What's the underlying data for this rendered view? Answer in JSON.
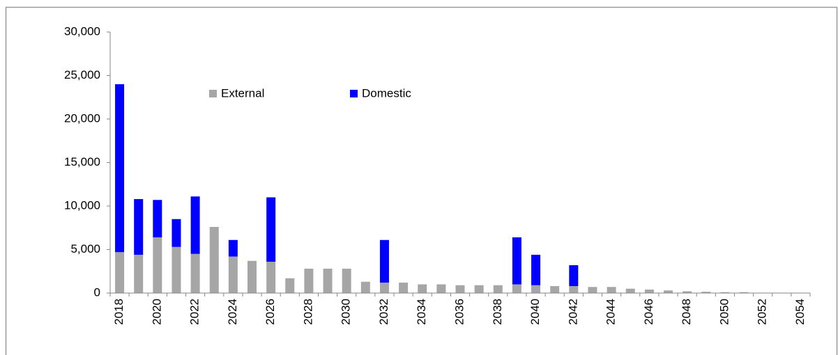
{
  "chart_data": {
    "type": "bar",
    "stacked": true,
    "categories": [
      "2018",
      null,
      "2020",
      null,
      "2022",
      null,
      "2024",
      null,
      "2026",
      null,
      "2028",
      null,
      "2030",
      null,
      "2032",
      null,
      "2034",
      null,
      "2036",
      null,
      "2038",
      null,
      "2040",
      null,
      "2042",
      null,
      "2044",
      null,
      "2046",
      null,
      "2048",
      null,
      "2050",
      null,
      "2052",
      null,
      "2054"
    ],
    "series": [
      {
        "name": "External",
        "color": "#a6a6a6",
        "values": [
          4700,
          4400,
          6400,
          5300,
          4500,
          7600,
          4200,
          3700,
          3600,
          1700,
          2800,
          2800,
          2800,
          1300,
          1200,
          1200,
          1000,
          1000,
          900,
          900,
          900,
          1000,
          900,
          800,
          800,
          700,
          700,
          500,
          400,
          300,
          200,
          150,
          100,
          100,
          0,
          0,
          0
        ]
      },
      {
        "name": "Domestic",
        "color": "#0000ff",
        "values": [
          19300,
          6400,
          4300,
          3200,
          6600,
          0,
          1900,
          0,
          7400,
          0,
          0,
          0,
          0,
          0,
          4900,
          0,
          0,
          0,
          0,
          0,
          0,
          5400,
          3500,
          0,
          2400,
          0,
          0,
          0,
          0,
          0,
          0,
          0,
          0,
          0,
          0,
          0,
          0
        ]
      }
    ],
    "ylim": [
      0,
      30000
    ],
    "yticks": [
      0,
      {
        "value": 5000,
        "label": "5,000"
      },
      {
        "value": 10000,
        "label": "10,000"
      },
      {
        "value": 15000,
        "label": "15,000"
      },
      {
        "value": 20000,
        "label": "20,000"
      },
      {
        "value": 25000,
        "label": "25,000"
      },
      {
        "value": 30000,
        "label": "30,000"
      }
    ],
    "grid": false,
    "legend": "top-left"
  }
}
